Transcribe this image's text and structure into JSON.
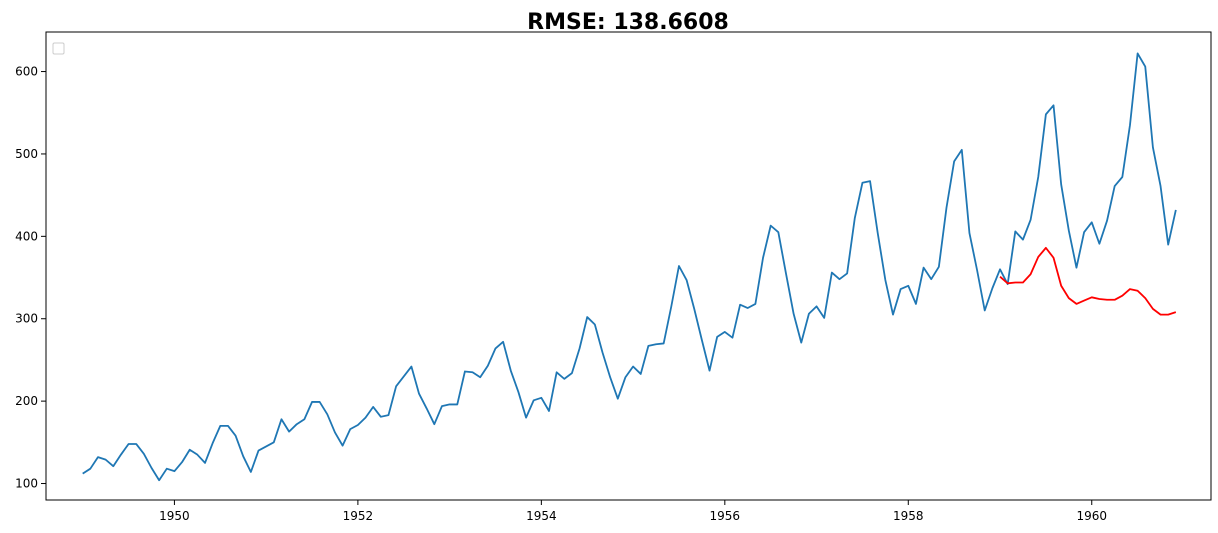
{
  "chart_data": {
    "type": "line",
    "title": "RMSE: 138.6608",
    "xlabel": "",
    "ylabel": "",
    "xlim": [
      1948.6,
      1961.3
    ],
    "ylim": [
      80,
      648
    ],
    "x_ticks": [
      1950,
      1952,
      1954,
      1956,
      1958,
      1960
    ],
    "x_tick_labels": [
      "1950",
      "1952",
      "1954",
      "1956",
      "1958",
      "1960"
    ],
    "y_ticks": [
      100,
      200,
      300,
      400,
      500,
      600
    ],
    "y_tick_labels": [
      "100",
      "200",
      "300",
      "400",
      "500",
      "600"
    ],
    "grid": false,
    "legend": "top-left, empty box",
    "series": [
      {
        "color": "#1f77b4",
        "x_start": 1949,
        "x_step_months": 1,
        "values": [
          112,
          118,
          132,
          129,
          121,
          135,
          148,
          148,
          136,
          119,
          104,
          118,
          115,
          126,
          141,
          135,
          125,
          149,
          170,
          170,
          158,
          133,
          114,
          140,
          145,
          150,
          178,
          163,
          172,
          178,
          199,
          199,
          184,
          162,
          146,
          166,
          171,
          180,
          193,
          181,
          183,
          218,
          230,
          242,
          209,
          191,
          172,
          194,
          196,
          196,
          236,
          235,
          229,
          243,
          264,
          272,
          237,
          211,
          180,
          201,
          204,
          188,
          235,
          227,
          234,
          264,
          302,
          293,
          259,
          229,
          203,
          229,
          242,
          233,
          267,
          269,
          270,
          315,
          364,
          347,
          312,
          274,
          237,
          278,
          284,
          277,
          317,
          313,
          318,
          374,
          413,
          405,
          355,
          306,
          271,
          306,
          315,
          301,
          356,
          348,
          355,
          422,
          465,
          467,
          404,
          347,
          305,
          336,
          340,
          318,
          362,
          348,
          363,
          435,
          491,
          505,
          404,
          359,
          310,
          337,
          360,
          342,
          406,
          396,
          420,
          472,
          548,
          559,
          463,
          407,
          362,
          405,
          417,
          391,
          419,
          461,
          472,
          535,
          622,
          606,
          508,
          461,
          390,
          432
        ]
      },
      {
        "color": "#ff0000",
        "x_start": 1959,
        "x_step_months": 1,
        "values": [
          351,
          343,
          344,
          344,
          354,
          375,
          386,
          374,
          340,
          325,
          318,
          322,
          326,
          324,
          323,
          323,
          328,
          336,
          334,
          325,
          312,
          305,
          305,
          308
        ]
      }
    ]
  }
}
